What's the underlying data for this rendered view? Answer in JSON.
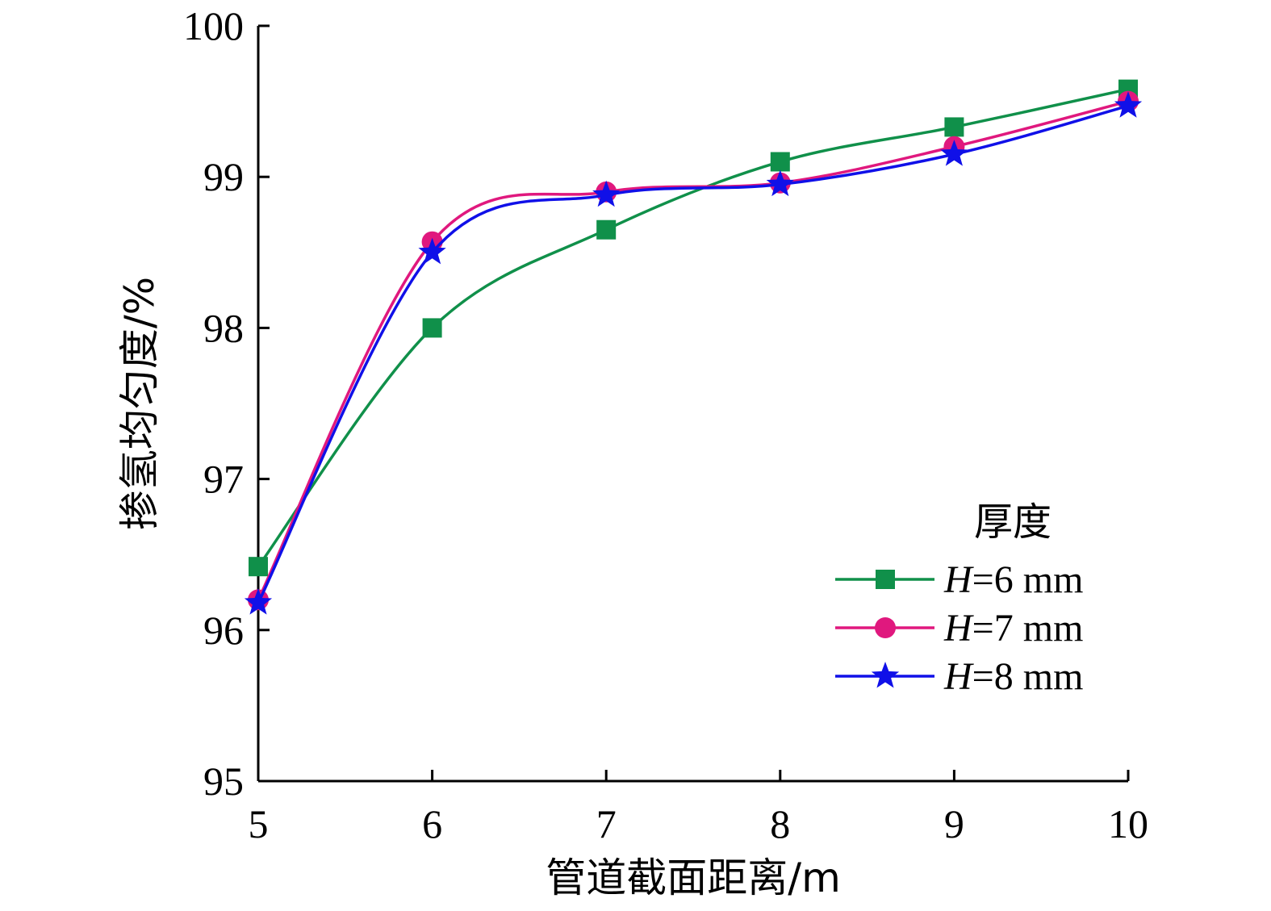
{
  "chart_data": {
    "type": "line",
    "title": "",
    "xlabel": "管道截面距离/m",
    "ylabel": "掺氢均匀度/%",
    "x": [
      5,
      6,
      7,
      8,
      9,
      10
    ],
    "xlim": [
      5,
      10
    ],
    "ylim": [
      95,
      100
    ],
    "xticks": [
      "5",
      "6",
      "7",
      "8",
      "9",
      "10"
    ],
    "yticks": [
      "95",
      "96",
      "97",
      "98",
      "99",
      "100"
    ],
    "grid": false,
    "legend_title": "厚度",
    "legend_position": "right-middle",
    "series": [
      {
        "name_italic": "H",
        "name_rest": "=6 mm",
        "values": [
          96.42,
          98.0,
          98.65,
          99.1,
          99.33,
          99.58
        ],
        "color": "#10904a",
        "marker": "square"
      },
      {
        "name_italic": "H",
        "name_rest": "=7 mm",
        "values": [
          96.2,
          98.57,
          98.9,
          98.96,
          99.2,
          99.5
        ],
        "color": "#e0187e",
        "marker": "circle"
      },
      {
        "name_italic": "H",
        "name_rest": "=8 mm",
        "values": [
          96.18,
          98.5,
          98.88,
          98.95,
          99.15,
          99.47
        ],
        "color": "#1010e8",
        "marker": "star"
      }
    ]
  }
}
